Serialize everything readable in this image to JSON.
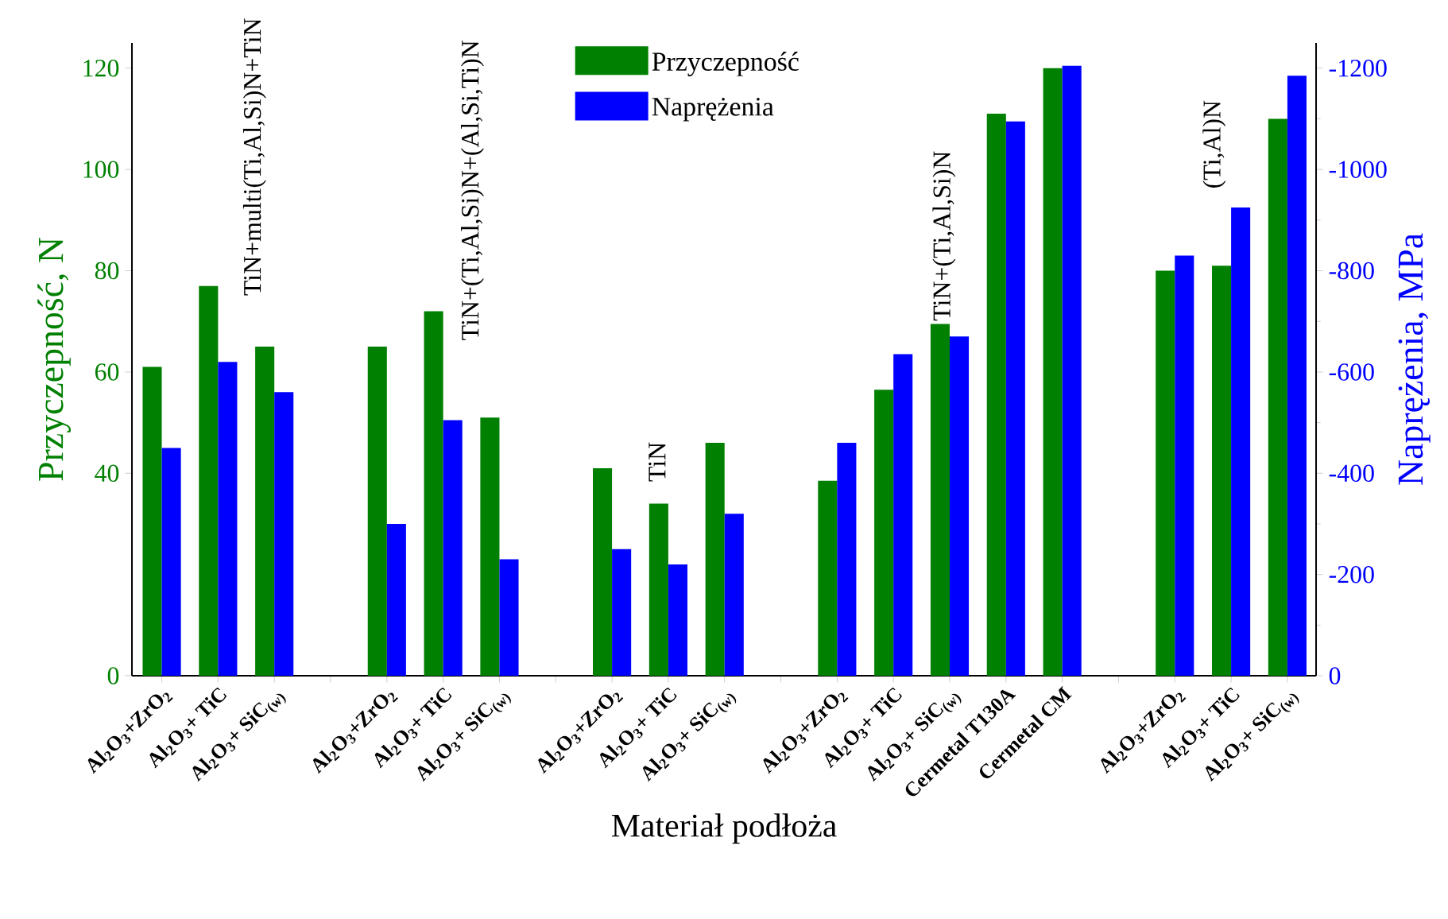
{
  "chart_data": {
    "type": "bar",
    "xlabel": "Materiał podłoża",
    "ylabel": "Przyczepność, N",
    "y2label": "Naprężenia, MPa",
    "categories": [
      "Al$_{2}$O$_{3}$+ZrO$_{2}$",
      "Al$_{2}$O$_{3}$+ TiC",
      "Al$_{2}$O$_{3}$+ SiC$_{(w)}$",
      null,
      "Al$_{2}$O$_{3}$+ZrO$_{2}$",
      "Al$_{2}$O$_{3}$+ TiC",
      "Al$_{2}$O$_{3}$+ SiC$_{(w)}$",
      null,
      "Al$_{2}$O$_{3}$+ZrO$_{2}$",
      "Al$_{2}$O$_{3}$+ TiC",
      "Al$_{2}$O$_{3}$+ SiC$_{(w)}$",
      null,
      "Al$_{2}$O$_{3}$+ZrO$_{2}$",
      "Al$_{2}$O$_{3}$+ TiC",
      "Al$_{2}$O$_{3}$+ SiC$_{(w)}$",
      "Cermetal T130A",
      "Cermetal CM",
      null,
      "Al$_{2}$O$_{3}$+ZrO$_{2}$",
      "Al$_{2}$O$_{3}$+ TiC",
      "Al$_{2}$O$_{3}$+ SiC$_{(w)}$"
    ],
    "series": [
      {
        "name": "Przyczepność",
        "color": "#008000",
        "values": [
          61,
          77,
          65,
          null,
          65,
          72,
          51,
          null,
          41,
          34,
          46,
          null,
          38.5,
          56.5,
          69.5,
          111,
          120,
          null,
          80,
          81,
          110
        ]
      },
      {
        "name": "Naprężenia",
        "color": "#0000ff",
        "axis": "y2",
        "values": [
          -450,
          -620,
          -560,
          null,
          -300,
          -505,
          -230,
          null,
          -250,
          -220,
          -320,
          null,
          -460,
          -635,
          -670,
          -1095,
          -1205,
          null,
          -830,
          -925,
          -1185
        ]
      }
    ],
    "ylim": [
      0,
      125
    ],
    "yticks": [
      0,
      40,
      60,
      80,
      100,
      120
    ],
    "y2lim": [
      0,
      -1250
    ],
    "y2ticks": [
      0,
      -200,
      -400,
      -600,
      -800,
      -1000,
      -1200
    ],
    "legend": "top",
    "annotations": [
      "TiN+multi(Ti,Al,Si)N+TiN",
      "TiN+(Ti,Al,Si)N+(Al,Si,Ti)N",
      "TiN",
      "TiN+(Ti,Al,Si)N",
      "(Ti,Al)N"
    ]
  }
}
